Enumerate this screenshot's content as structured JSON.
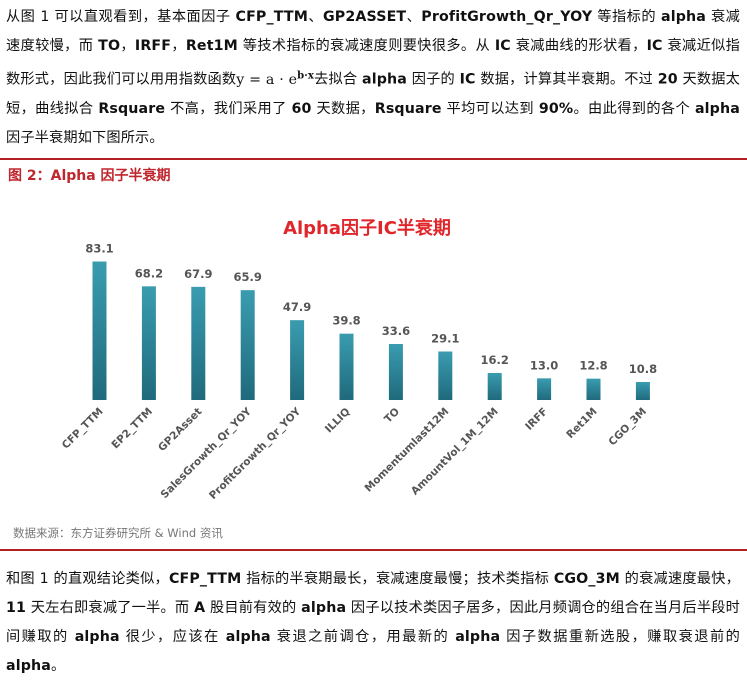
{
  "para1": {
    "a1": "从图 1 可以直观看到，基本面因子 ",
    "b1": "CFP_TTM",
    "a2": "、",
    "b2": "GP2ASSET",
    "a3": "、",
    "b3": "ProfitGrowth_Qr_YOY",
    "a4": " 等指标的 ",
    "b4": "alpha",
    "a5": " 衰减速度较慢，而 ",
    "b5": "TO",
    "a6": "，",
    "b6": "IRFF",
    "a7": "，",
    "b7": "Ret1M",
    "a8": " 等技术指标的衰减速度则要快很多。从 ",
    "b8": "IC",
    "a9": " 衰减曲线的形状看，",
    "b9": "IC",
    "a10": " 衰减近似指数形式，因此我们可以用用指数函数",
    "formula": "y = a · e",
    "formula_sup": "b·x",
    "a11": "去拟合 ",
    "b10": "alpha",
    "a12": " 因子的 ",
    "b11": "IC",
    "a13": " 数据，计算其半衰期。不过 ",
    "b12": "20",
    "a14": " 天数据太短，曲线拟合 ",
    "b13": "Rsquare",
    "a15": " 不高，我们采用了 ",
    "b14": "60",
    "a16": " 天数据，",
    "b15": "Rsquare",
    "a17": " 平均可以达到 ",
    "b16": "90%",
    "a18": "。由此得到的各个 ",
    "b17": "alpha",
    "a19": " 因子半衰期如下图所示。"
  },
  "figure": {
    "caption": "图 2：Alpha 因子半衰期",
    "source": "数据来源：东方证券研究所 & Wind 资讯"
  },
  "chart_data": {
    "type": "bar",
    "title": "Alpha因子IC半衰期",
    "categories": [
      "CFP_TTM",
      "EP2_TTM",
      "GP2Asset",
      "SalesGrowth_Qr_YOY",
      "ProfitGrowth_Qr_YOY",
      "ILLIQ",
      "TO",
      "Momentumlast12M",
      "AmountVol_1M_12M",
      "IRFF",
      "Ret1M",
      "CGO_3M"
    ],
    "values": [
      83.1,
      68.2,
      67.9,
      65.9,
      47.9,
      39.8,
      33.6,
      29.1,
      16.2,
      13.0,
      12.8,
      10.8
    ],
    "value_labels": [
      "83.1",
      "68.2",
      "67.9",
      "65.9",
      "47.9",
      "39.8",
      "33.6",
      "29.1",
      "16.2",
      "13.0",
      "12.8",
      "10.8"
    ],
    "grid": false,
    "legend": "none",
    "ylim": [
      0,
      90
    ],
    "colors": {
      "bar_top": "#3a9cb0",
      "bar_bottom": "#1f6a7c",
      "title": "#e0262b",
      "label": "#555555"
    }
  },
  "para2": {
    "a1": "和图 1 的直观结论类似，",
    "b1": "CFP_TTM",
    "a2": " 指标的半衰期最长，衰减速度最慢；技术类指标 ",
    "b2": "CGO_3M",
    "a3": " 的衰减速度最快，",
    "b3": "11",
    "a4": " 天左右即衰减了一半。而 ",
    "b4": "A",
    "a5": " 股目前有效的 ",
    "b5": "alpha",
    "a6": " 因子以技术类因子居多，因此月频调仓的组合在当月后半段时间赚取的 ",
    "b6": "alpha",
    "a7": " 很少，应该在 ",
    "b7": "alpha",
    "a8": " 衰退之前调仓，用最新的 ",
    "b8": "alpha",
    "a9": " 因子数据重新选股，赚取衰退前的 ",
    "b9": "alpha",
    "a10": "。"
  }
}
